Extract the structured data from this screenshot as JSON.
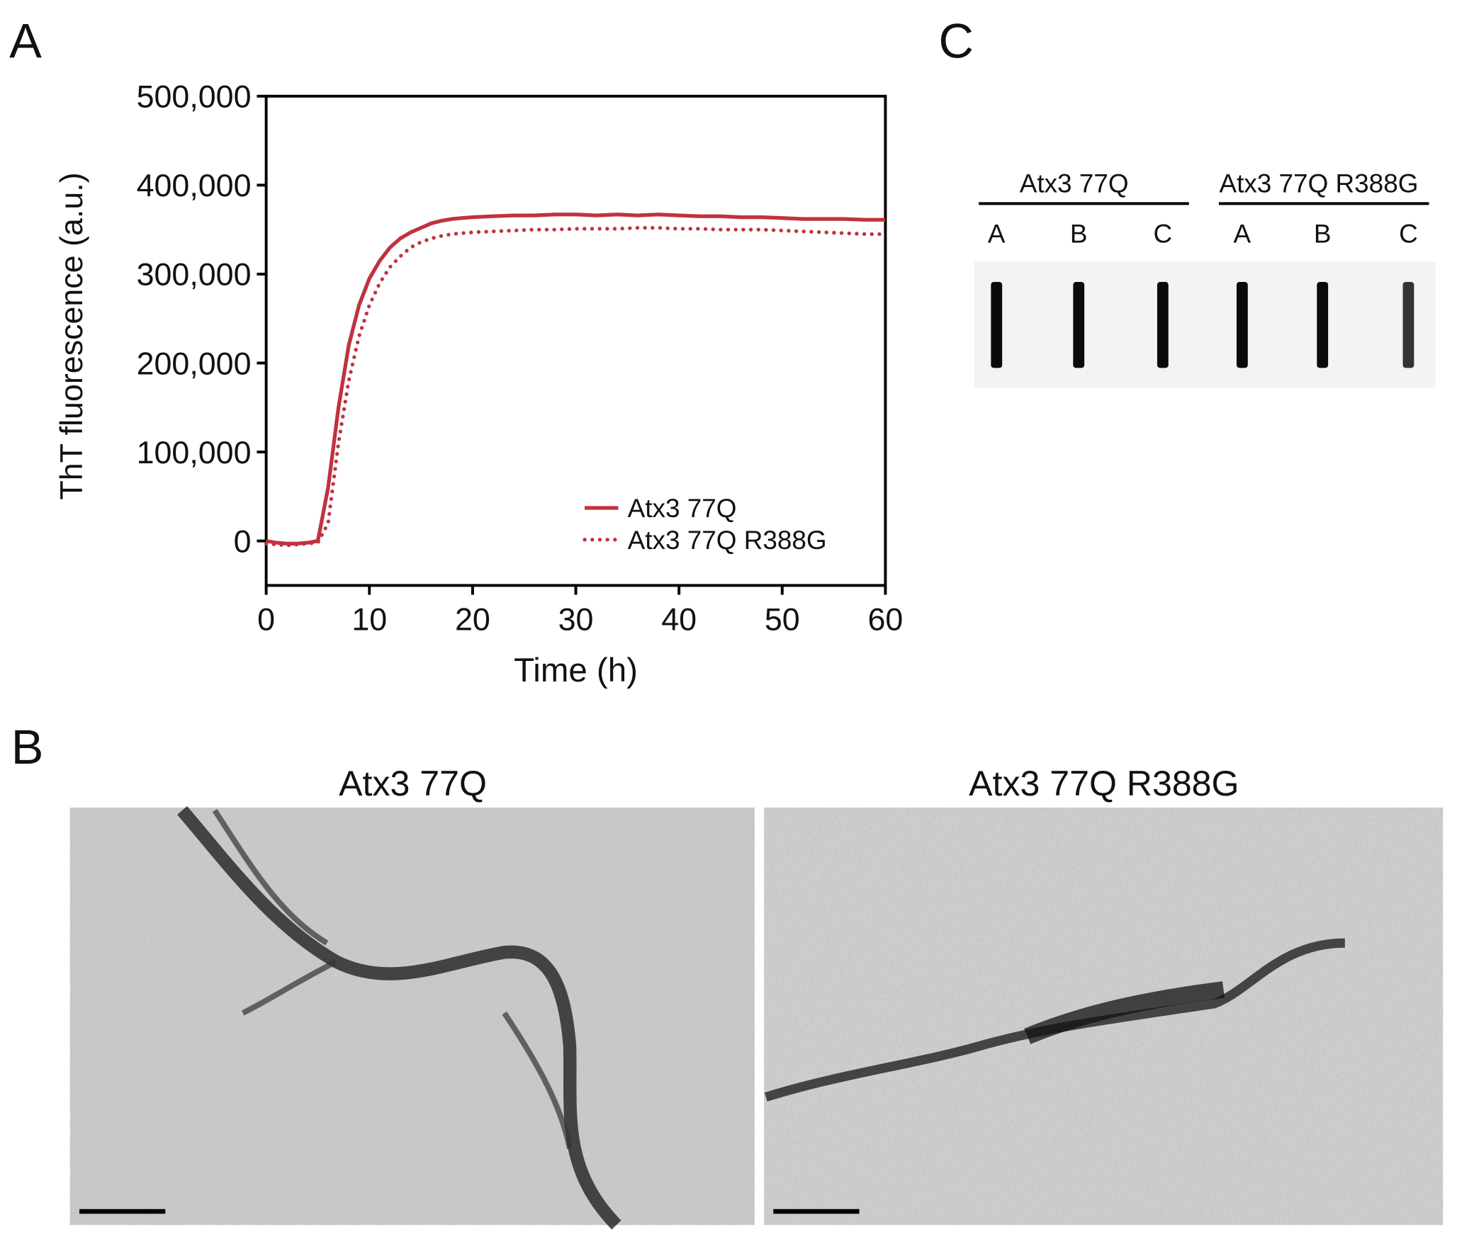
{
  "panels": {
    "a": "A",
    "b": "B",
    "c": "C"
  },
  "chart_data": {
    "type": "line",
    "xlabel": "Time (h)",
    "ylabel": "ThT fluorescence (a.u.)",
    "x": [
      0,
      1,
      2,
      3,
      4,
      5,
      6,
      7,
      8,
      9,
      10,
      11,
      12,
      13,
      14,
      15,
      16,
      17,
      18,
      19,
      20,
      22,
      24,
      26,
      28,
      30,
      32,
      34,
      36,
      38,
      40,
      42,
      44,
      46,
      48,
      50,
      52,
      54,
      56,
      58,
      60
    ],
    "series": [
      {
        "name": "Atx3 77Q",
        "color": "#c0323f",
        "style": "solid",
        "values": [
          0,
          -2000,
          -3000,
          -3000,
          -2000,
          0,
          60000,
          150000,
          220000,
          265000,
          295000,
          315000,
          330000,
          340000,
          347000,
          352000,
          357000,
          360000,
          362000,
          363000,
          364000,
          365000,
          366000,
          366000,
          367000,
          367000,
          366000,
          367000,
          366000,
          367000,
          366000,
          365000,
          365000,
          364000,
          364000,
          363000,
          362000,
          362000,
          362000,
          361000,
          361000
        ]
      },
      {
        "name": "Atx3 77Q R388G",
        "color": "#c0323f",
        "style": "dotted",
        "values": [
          -3000,
          -4000,
          -5000,
          -4000,
          -3000,
          -2000,
          20000,
          110000,
          180000,
          230000,
          265000,
          290000,
          308000,
          320000,
          330000,
          336000,
          340000,
          343000,
          345000,
          346000,
          347000,
          348000,
          349000,
          350000,
          350000,
          351000,
          351000,
          351000,
          352000,
          352000,
          351000,
          351000,
          350000,
          350000,
          350000,
          349000,
          348000,
          347000,
          346000,
          345000,
          345000
        ]
      }
    ],
    "xlim": [
      0,
      60
    ],
    "xticks": [
      0,
      10,
      20,
      30,
      40,
      50,
      60
    ],
    "ylim": [
      -50000,
      500000
    ],
    "yticks": [
      0,
      {
        "value": 100000,
        "label": "100,000"
      },
      {
        "value": 200000,
        "label": "200,000"
      },
      {
        "value": 300000,
        "label": "300,000"
      },
      {
        "value": 400000,
        "label": "400,000"
      },
      {
        "value": 500000,
        "label": "500,000"
      }
    ],
    "legend": "lower right"
  },
  "micrographs": {
    "titles": [
      "Atx3 77Q",
      "Atx3 77Q R388G"
    ]
  },
  "slot_blot": {
    "groups": [
      "Atx3 77Q",
      "Atx3 77Q R388G"
    ],
    "lanes": [
      "A",
      "B",
      "C",
      "A",
      "B",
      "C"
    ]
  }
}
